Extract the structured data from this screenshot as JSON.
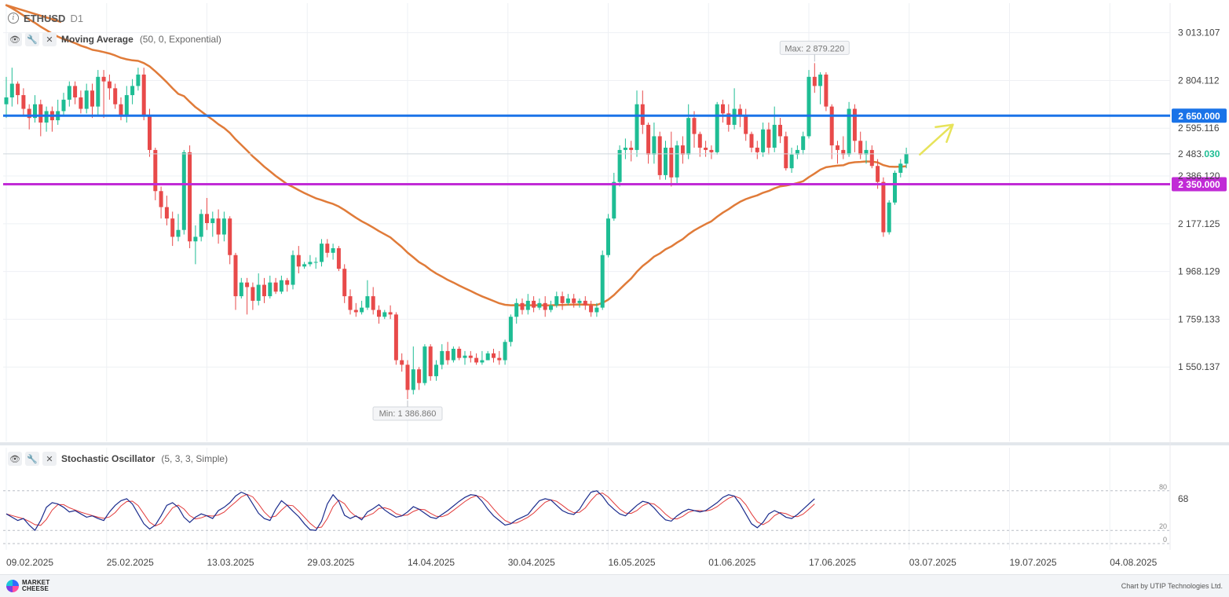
{
  "header": {
    "symbol": "ETHUSD",
    "timeframe": "D1"
  },
  "ma_indicator": {
    "name": "Moving Average",
    "params": "(50, 0, Exponential)"
  },
  "stoch_indicator": {
    "name": "Stochastic Oscillator",
    "params": "(5, 3, 3, Simple)"
  },
  "footer": {
    "brand_line1": "MARKET",
    "brand_line2": "CHEESE",
    "credit": "Chart by UTIP Technologies Ltd."
  },
  "colors": {
    "bull": "#1ebd94",
    "bear": "#e84a4a",
    "ma": "#e07b39",
    "resistance": "#1a73e8",
    "support": "#c12bd6",
    "arrow": "#e7e35a",
    "stoch_k": "#1a2b8c",
    "stoch_d": "#e23a3a"
  },
  "chart_data": [
    {
      "type": "candlestick",
      "title": "ETHUSD D1",
      "y_ticks": [
        "3 013.107",
        "2 804.112",
        "2 595.116",
        "2 386.120",
        "2 177.125",
        "1 968.129",
        "1 759.133",
        "1 550.137"
      ],
      "x_labels": [
        "09.02.2025",
        "25.02.2025",
        "13.03.2025",
        "29.03.2025",
        "14.04.2025",
        "30.04.2025",
        "16.05.2025",
        "01.06.2025",
        "17.06.2025",
        "03.07.2025",
        "19.07.2025",
        "04.08.2025"
      ],
      "ylim": [
        1300,
        3060
      ],
      "current_price": "2 483.030",
      "max_label": "Max: 2 879.220",
      "min_label": "Min: 1 386.860",
      "horizontal_lines": [
        {
          "label": "2 650.000",
          "value": 2650,
          "color": "#1a73e8"
        },
        {
          "label": "2 350.000",
          "value": 2350,
          "color": "#c12bd6"
        }
      ],
      "ma_series": {
        "name": "Moving Average (50, 0, Exponential)",
        "period": 50
      },
      "candles": [
        [
          2700,
          2730,
          2820,
          2640
        ],
        [
          2730,
          2790,
          2860,
          2690
        ],
        [
          2790,
          2740,
          2800,
          2700
        ],
        [
          2740,
          2680,
          2770,
          2650
        ],
        [
          2680,
          2640,
          2700,
          2590
        ],
        [
          2640,
          2700,
          2740,
          2620
        ],
        [
          2700,
          2620,
          2720,
          2560
        ],
        [
          2620,
          2670,
          2690,
          2580
        ],
        [
          2670,
          2630,
          2690,
          2580
        ],
        [
          2630,
          2670,
          2720,
          2610
        ],
        [
          2670,
          2720,
          2750,
          2650
        ],
        [
          2720,
          2780,
          2800,
          2690
        ],
        [
          2780,
          2730,
          2800,
          2700
        ],
        [
          2730,
          2680,
          2760,
          2660
        ],
        [
          2680,
          2760,
          2790,
          2660
        ],
        [
          2760,
          2690,
          2790,
          2640
        ],
        [
          2690,
          2820,
          2850,
          2650
        ],
        [
          2820,
          2800,
          2850,
          2640
        ],
        [
          2800,
          2770,
          2830,
          2720
        ],
        [
          2770,
          2700,
          2790,
          2680
        ],
        [
          2700,
          2650,
          2730,
          2630
        ],
        [
          2650,
          2740,
          2780,
          2620
        ],
        [
          2740,
          2780,
          2810,
          2700
        ],
        [
          2780,
          2830,
          2860,
          2760
        ],
        [
          2830,
          2650,
          2860,
          2630
        ],
        [
          2650,
          2500,
          2680,
          2470
        ],
        [
          2500,
          2320,
          2510,
          2280
        ],
        [
          2320,
          2250,
          2340,
          2200
        ],
        [
          2250,
          2200,
          2300,
          2170
        ],
        [
          2200,
          2120,
          2230,
          2080
        ],
        [
          2120,
          2150,
          2220,
          2100
        ],
        [
          2150,
          2490,
          2500,
          2130
        ],
        [
          2490,
          2100,
          2520,
          2070
        ],
        [
          2100,
          2120,
          2170,
          2000
        ],
        [
          2120,
          2220,
          2240,
          2100
        ],
        [
          2220,
          2180,
          2290,
          2150
        ],
        [
          2180,
          2200,
          2230,
          2120
        ],
        [
          2200,
          2130,
          2240,
          2090
        ],
        [
          2130,
          2200,
          2230,
          2100
        ],
        [
          2200,
          2040,
          2210,
          2000
        ],
        [
          2040,
          1860,
          2050,
          1800
        ],
        [
          1860,
          1920,
          1940,
          1850
        ],
        [
          1920,
          1900,
          1940,
          1780
        ],
        [
          1900,
          1840,
          1920,
          1800
        ],
        [
          1840,
          1910,
          1960,
          1820
        ],
        [
          1910,
          1860,
          1940,
          1830
        ],
        [
          1860,
          1920,
          1950,
          1850
        ],
        [
          1920,
          1880,
          1940,
          1870
        ],
        [
          1880,
          1930,
          1950,
          1870
        ],
        [
          1930,
          1910,
          1940,
          1880
        ],
        [
          1910,
          2040,
          2060,
          1890
        ],
        [
          2040,
          1990,
          2080,
          1960
        ],
        [
          1990,
          2000,
          2010,
          1980
        ],
        [
          2000,
          2010,
          2040,
          1990
        ],
        [
          2010,
          2010,
          2030,
          1980
        ],
        [
          2010,
          2090,
          2110,
          1990
        ],
        [
          2090,
          2050,
          2110,
          2030
        ],
        [
          2050,
          2070,
          2090,
          2020
        ],
        [
          2070,
          1980,
          2080,
          1970
        ],
        [
          1980,
          1860,
          2000,
          1830
        ],
        [
          1860,
          1800,
          1890,
          1780
        ],
        [
          1800,
          1790,
          1830,
          1770
        ],
        [
          1790,
          1810,
          1840,
          1780
        ],
        [
          1810,
          1860,
          1930,
          1800
        ],
        [
          1860,
          1800,
          1900,
          1780
        ],
        [
          1800,
          1770,
          1820,
          1740
        ],
        [
          1770,
          1790,
          1800,
          1760
        ],
        [
          1790,
          1780,
          1820,
          1760
        ],
        [
          1780,
          1580,
          1790,
          1560
        ],
        [
          1580,
          1560,
          1610,
          1530
        ],
        [
          1560,
          1450,
          1580,
          1410
        ],
        [
          1450,
          1540,
          1640,
          1430
        ],
        [
          1540,
          1480,
          1550,
          1450
        ],
        [
          1480,
          1640,
          1650,
          1470
        ],
        [
          1640,
          1510,
          1650,
          1490
        ],
        [
          1510,
          1560,
          1580,
          1490
        ],
        [
          1560,
          1620,
          1650,
          1540
        ],
        [
          1620,
          1580,
          1660,
          1560
        ],
        [
          1580,
          1630,
          1640,
          1570
        ],
        [
          1630,
          1590,
          1640,
          1580
        ],
        [
          1590,
          1600,
          1620,
          1560
        ],
        [
          1600,
          1590,
          1620,
          1570
        ],
        [
          1590,
          1570,
          1610,
          1560
        ],
        [
          1570,
          1580,
          1620,
          1560
        ],
        [
          1580,
          1610,
          1620,
          1580
        ],
        [
          1610,
          1590,
          1630,
          1570
        ],
        [
          1590,
          1580,
          1620,
          1560
        ],
        [
          1580,
          1660,
          1670,
          1560
        ],
        [
          1660,
          1770,
          1780,
          1640
        ],
        [
          1770,
          1830,
          1850,
          1740
        ],
        [
          1830,
          1800,
          1850,
          1780
        ],
        [
          1800,
          1840,
          1870,
          1780
        ],
        [
          1840,
          1810,
          1860,
          1790
        ],
        [
          1810,
          1830,
          1850,
          1800
        ],
        [
          1830,
          1800,
          1860,
          1770
        ],
        [
          1800,
          1820,
          1840,
          1790
        ],
        [
          1820,
          1860,
          1880,
          1810
        ],
        [
          1860,
          1830,
          1880,
          1800
        ],
        [
          1830,
          1850,
          1870,
          1820
        ],
        [
          1850,
          1830,
          1870,
          1810
        ],
        [
          1830,
          1840,
          1850,
          1810
        ],
        [
          1840,
          1820,
          1860,
          1800
        ],
        [
          1820,
          1790,
          1840,
          1770
        ],
        [
          1790,
          1810,
          1830,
          1770
        ],
        [
          1810,
          2040,
          2060,
          1800
        ],
        [
          2040,
          2200,
          2220,
          2030
        ],
        [
          2200,
          2360,
          2400,
          2190
        ],
        [
          2360,
          2500,
          2520,
          2340
        ],
        [
          2500,
          2510,
          2550,
          2460
        ],
        [
          2510,
          2500,
          2540,
          2450
        ],
        [
          2500,
          2700,
          2760,
          2470
        ],
        [
          2700,
          2610,
          2760,
          2570
        ],
        [
          2610,
          2480,
          2620,
          2440
        ],
        [
          2480,
          2560,
          2620,
          2440
        ],
        [
          2560,
          2390,
          2580,
          2370
        ],
        [
          2390,
          2510,
          2540,
          2370
        ],
        [
          2510,
          2380,
          2580,
          2340
        ],
        [
          2380,
          2520,
          2540,
          2350
        ],
        [
          2520,
          2480,
          2560,
          2440
        ],
        [
          2480,
          2640,
          2700,
          2460
        ],
        [
          2640,
          2570,
          2670,
          2510
        ],
        [
          2570,
          2510,
          2580,
          2470
        ],
        [
          2510,
          2500,
          2540,
          2470
        ],
        [
          2500,
          2490,
          2520,
          2460
        ],
        [
          2490,
          2700,
          2710,
          2480
        ],
        [
          2700,
          2660,
          2720,
          2620
        ],
        [
          2660,
          2610,
          2700,
          2580
        ],
        [
          2610,
          2680,
          2770,
          2590
        ],
        [
          2680,
          2650,
          2700,
          2600
        ],
        [
          2650,
          2570,
          2680,
          2540
        ],
        [
          2570,
          2510,
          2580,
          2490
        ],
        [
          2510,
          2490,
          2540,
          2460
        ],
        [
          2490,
          2590,
          2620,
          2470
        ],
        [
          2590,
          2510,
          2620,
          2480
        ],
        [
          2510,
          2610,
          2690,
          2490
        ],
        [
          2610,
          2560,
          2640,
          2530
        ],
        [
          2560,
          2420,
          2580,
          2410
        ],
        [
          2420,
          2480,
          2510,
          2400
        ],
        [
          2480,
          2500,
          2520,
          2460
        ],
        [
          2500,
          2560,
          2580,
          2480
        ],
        [
          2560,
          2820,
          2850,
          2550
        ],
        [
          2820,
          2780,
          2880,
          2750
        ],
        [
          2780,
          2830,
          2840,
          2700
        ],
        [
          2830,
          2690,
          2840,
          2670
        ],
        [
          2690,
          2520,
          2700,
          2460
        ],
        [
          2520,
          2500,
          2540,
          2440
        ],
        [
          2500,
          2480,
          2560,
          2460
        ],
        [
          2480,
          2680,
          2710,
          2470
        ],
        [
          2680,
          2540,
          2700,
          2490
        ],
        [
          2540,
          2480,
          2580,
          2460
        ],
        [
          2480,
          2500,
          2540,
          2440
        ],
        [
          2500,
          2430,
          2520,
          2420
        ],
        [
          2430,
          2360,
          2460,
          2330
        ],
        [
          2360,
          2140,
          2380,
          2120
        ],
        [
          2140,
          2270,
          2280,
          2130
        ],
        [
          2270,
          2400,
          2410,
          2260
        ],
        [
          2400,
          2440,
          2460,
          2380
        ],
        [
          2440,
          2483,
          2510,
          2420
        ]
      ],
      "stochastic": {
        "levels": [
          "80",
          "20",
          "0"
        ],
        "current_value": "68",
        "k": [
          45,
          40,
          35,
          38,
          28,
          20,
          35,
          55,
          62,
          60,
          55,
          48,
          50,
          45,
          40,
          42,
          38,
          35,
          48,
          58,
          65,
          68,
          60,
          45,
          30,
          22,
          28,
          42,
          58,
          62,
          55,
          40,
          32,
          40,
          45,
          42,
          38,
          50,
          55,
          62,
          72,
          78,
          74,
          60,
          46,
          38,
          35,
          52,
          65,
          58,
          49,
          41,
          30,
          21,
          20,
          34,
          60,
          74,
          64,
          43,
          38,
          42,
          36,
          48,
          53,
          59,
          51,
          45,
          40,
          42,
          48,
          56,
          52,
          46,
          40,
          38,
          44,
          50,
          57,
          64,
          70,
          74,
          73,
          64,
          52,
          42,
          35,
          28,
          30,
          36,
          40,
          44,
          55,
          65,
          68,
          66,
          58,
          50,
          46,
          44,
          52,
          66,
          78,
          80,
          72,
          60,
          52,
          45,
          42,
          50,
          58,
          64,
          62,
          54,
          44,
          36,
          34,
          42,
          48,
          52,
          50,
          48,
          50,
          56,
          62,
          70,
          74,
          72,
          60,
          45,
          30,
          24,
          32,
          45,
          50,
          46,
          40,
          38,
          44,
          52,
          60,
          68
        ]
      }
    }
  ]
}
